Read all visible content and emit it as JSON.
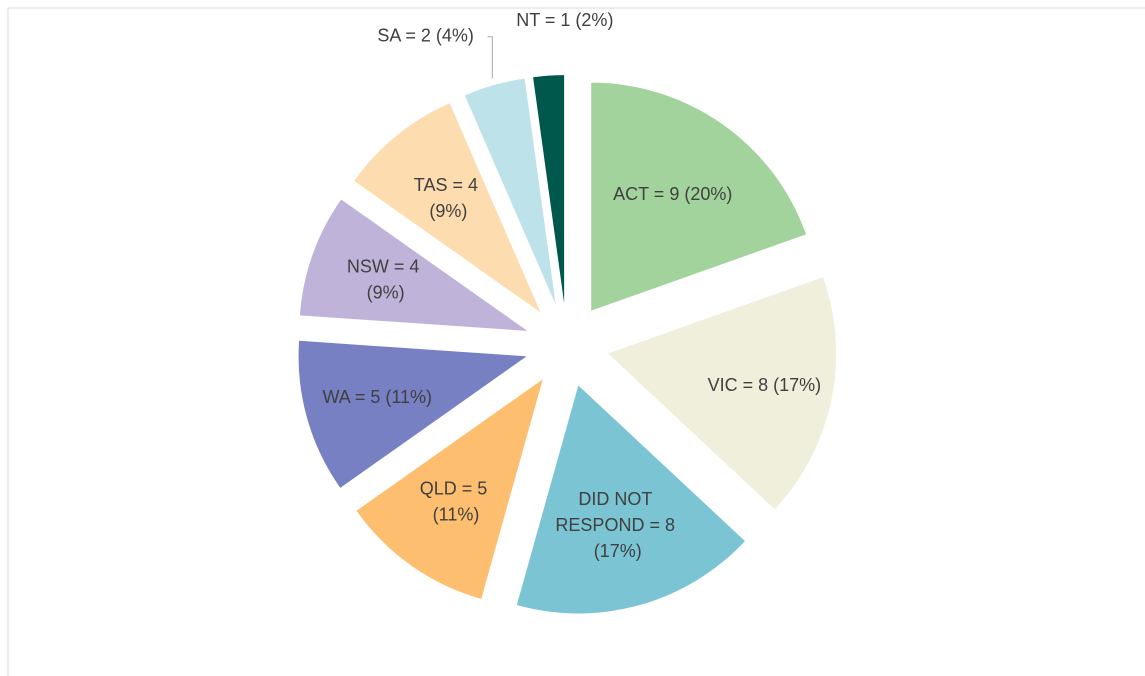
{
  "chart_data": {
    "type": "pie",
    "values": [
      9,
      8,
      8,
      5,
      5,
      4,
      4,
      2,
      1
    ],
    "value_labels": [
      "ACT = 9 (20%)",
      "VIC = 8 (17%)",
      "DID NOT RESPOND = 8 (17%)",
      "QLD = 5 (11%)",
      "WA = 5 (11%)",
      "NSW = 4 (9%)",
      "TAS = 4 (9%)",
      "SA = 2 (4%)",
      "NT = 1 (2%)"
    ],
    "colors": [
      "#a3d39c",
      "#f0efdc",
      "#7ac4d3",
      "#fdbf6f",
      "#7680c2",
      "#bfb3da",
      "#fddcb0",
      "#bde2ea",
      "#00574b"
    ]
  }
}
